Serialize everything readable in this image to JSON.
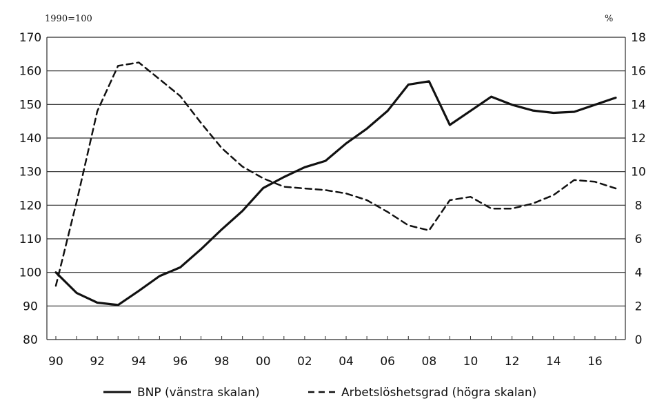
{
  "chart_data": {
    "type": "line",
    "left_axis": {
      "unit_label": "1990=100",
      "ylim": [
        80,
        170
      ],
      "ticks": [
        80,
        90,
        100,
        110,
        120,
        130,
        140,
        150,
        160,
        170
      ]
    },
    "right_axis": {
      "unit_label": "%",
      "ylim": [
        0,
        18
      ],
      "ticks": [
        0,
        2,
        4,
        6,
        8,
        10,
        12,
        14,
        16,
        18
      ]
    },
    "xlim": [
      1990,
      2017
    ],
    "x_tick_values": [
      1990,
      1992,
      1994,
      1996,
      1998,
      2000,
      2002,
      2004,
      2006,
      2008,
      2010,
      2012,
      2014,
      2016
    ],
    "x_tick_labels": [
      "90",
      "92",
      "94",
      "96",
      "98",
      "00",
      "02",
      "04",
      "06",
      "08",
      "10",
      "12",
      "14",
      "16"
    ],
    "grid": "horizontal",
    "legend_position": "bottom",
    "series": [
      {
        "name": "BNP (vänstra skalan)",
        "axis": "left",
        "style": "solid",
        "x": [
          1990,
          1991,
          1992,
          1993,
          1994,
          1995,
          1996,
          1997,
          1998,
          1999,
          2000,
          2001,
          2002,
          2003,
          2004,
          2005,
          2006,
          2007,
          2008,
          2009,
          2010,
          2011,
          2012,
          2013,
          2014,
          2015,
          2016,
          2017
        ],
        "values": [
          100,
          93.9,
          91.0,
          90.3,
          94.5,
          98.9,
          101.5,
          106.9,
          112.8,
          118.3,
          125.1,
          128.4,
          131.3,
          133.2,
          138.4,
          142.8,
          148.1,
          155.9,
          156.9,
          143.9,
          148.1,
          152.3,
          149.9,
          148.2,
          147.5,
          147.8,
          149.9,
          152.0
        ]
      },
      {
        "name": "Arbetslöshetsgrad (högra skalan)",
        "axis": "right",
        "style": "dashed",
        "x": [
          1990,
          1991,
          1992,
          1993,
          1994,
          1995,
          1996,
          1997,
          1998,
          1999,
          2000,
          2001,
          2002,
          2003,
          2004,
          2005,
          2006,
          2007,
          2008,
          2009,
          2010,
          2011,
          2012,
          2013,
          2014,
          2015,
          2016,
          2017
        ],
        "values": [
          3.2,
          8.2,
          13.6,
          16.3,
          16.5,
          15.5,
          14.5,
          12.9,
          11.4,
          10.3,
          9.6,
          9.1,
          9.0,
          8.9,
          8.7,
          8.3,
          7.6,
          6.8,
          6.5,
          8.3,
          8.5,
          7.8,
          7.8,
          8.1,
          8.6,
          9.5,
          9.4,
          9.0
        ]
      }
    ]
  }
}
